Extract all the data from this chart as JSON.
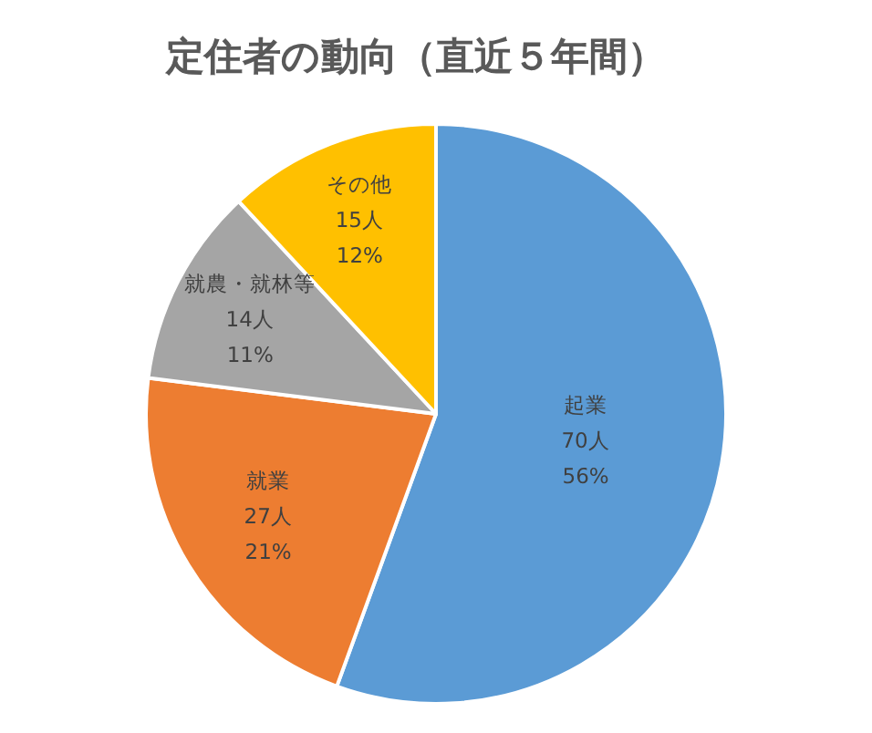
{
  "chart_data": {
    "type": "pie",
    "title": "定住者の動向（直近５年間）",
    "categories": [
      "起業",
      "就業",
      "就農・就林等",
      "その他"
    ],
    "values": [
      70,
      27,
      14,
      15
    ],
    "colors": [
      "#5b9bd5",
      "#ed7d31",
      "#a5a5a5",
      "#ffc000"
    ],
    "value_labels": [
      "70人\n56%",
      "27人\n21%",
      "14人\n11%",
      "15人\n12%"
    ]
  }
}
